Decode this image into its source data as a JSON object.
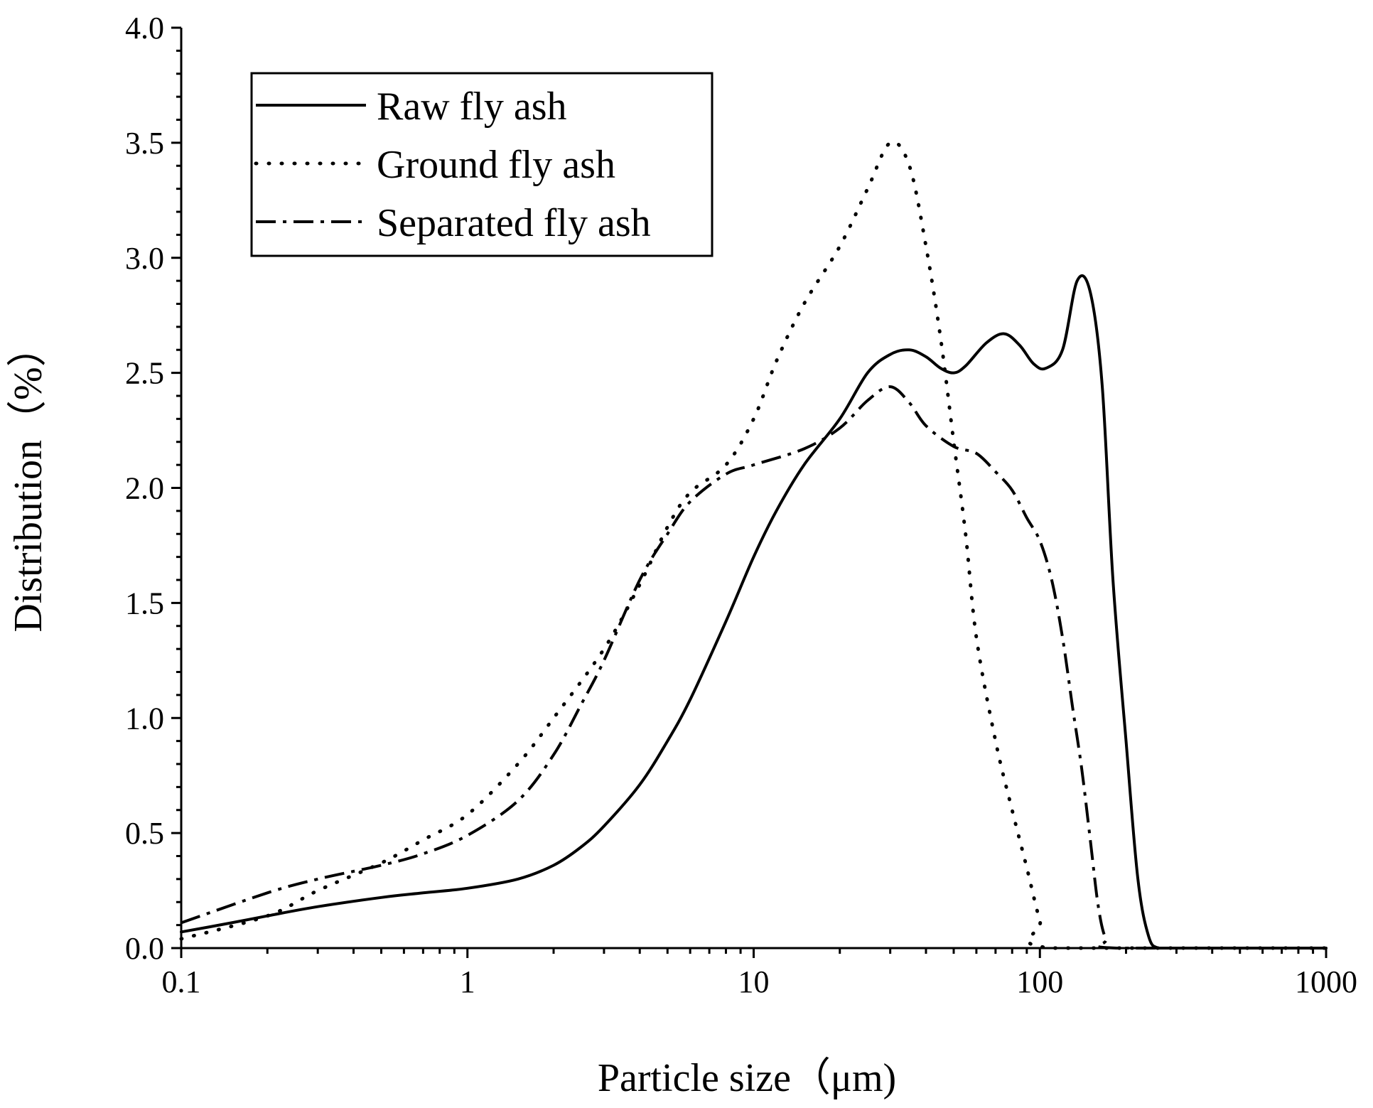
{
  "chart_data": {
    "type": "line",
    "title": "",
    "xlabel": "Particle size（μm)",
    "ylabel": "Distribution（%）",
    "xscale": "log",
    "xlim": [
      0.1,
      1000
    ],
    "ylim": [
      0.0,
      4.0
    ],
    "x_ticks": [
      "0.1",
      "1",
      "10",
      "100",
      "1000"
    ],
    "y_ticks": [
      "0.0",
      "0.5",
      "1.0",
      "1.5",
      "2.0",
      "2.5",
      "3.0",
      "3.5",
      "4.0"
    ],
    "legend_position": "top-left",
    "series": [
      {
        "name": "Raw fly ash",
        "style": "solid",
        "x": [
          0.1,
          0.15,
          0.2,
          0.3,
          0.5,
          0.7,
          1.0,
          1.5,
          2.0,
          2.5,
          3.0,
          4.0,
          5.0,
          6.0,
          8.0,
          10.0,
          12.0,
          15.0,
          20.0,
          25.0,
          30.0,
          35.0,
          40.0,
          45.0,
          50.0,
          55.0,
          65.0,
          75.0,
          85.0,
          95.0,
          105.0,
          120.0,
          135.0,
          150.0,
          165.0,
          180.0,
          200.0,
          220.0,
          240.0,
          260.0,
          300.0,
          1000.0
        ],
        "values": [
          0.07,
          0.11,
          0.14,
          0.18,
          0.22,
          0.24,
          0.26,
          0.3,
          0.36,
          0.44,
          0.53,
          0.71,
          0.9,
          1.08,
          1.42,
          1.7,
          1.9,
          2.1,
          2.3,
          2.5,
          2.58,
          2.6,
          2.57,
          2.52,
          2.5,
          2.53,
          2.63,
          2.67,
          2.62,
          2.54,
          2.52,
          2.6,
          2.9,
          2.85,
          2.45,
          1.6,
          0.9,
          0.3,
          0.05,
          0.0,
          0.0,
          0.0
        ]
      },
      {
        "name": "Ground fly ash",
        "style": "dotted",
        "x": [
          0.1,
          0.2,
          0.3,
          0.5,
          0.7,
          1.0,
          1.5,
          2.0,
          3.0,
          4.0,
          5.0,
          6.0,
          8.0,
          10.0,
          12.0,
          15.0,
          20.0,
          25.0,
          30.0,
          35.0,
          40.0,
          45.0,
          50.0,
          55.0,
          60.0,
          70.0,
          80.0,
          90.0,
          100.0,
          110.0,
          1000.0
        ],
        "values": [
          0.04,
          0.14,
          0.25,
          0.37,
          0.47,
          0.58,
          0.8,
          1.0,
          1.3,
          1.58,
          1.83,
          1.98,
          2.1,
          2.3,
          2.55,
          2.8,
          3.05,
          3.3,
          3.5,
          3.4,
          3.05,
          2.65,
          2.2,
          1.8,
          1.35,
          0.9,
          0.6,
          0.35,
          0.12,
          0.0,
          0.0
        ]
      },
      {
        "name": "Separated fly ash",
        "style": "dash-dot",
        "x": [
          0.1,
          0.2,
          0.3,
          0.5,
          0.7,
          1.0,
          1.5,
          2.0,
          2.5,
          3.0,
          4.0,
          5.0,
          6.0,
          8.0,
          10.0,
          15.0,
          20.0,
          25.0,
          30.0,
          35.0,
          40.0,
          50.0,
          60.0,
          70.0,
          80.0,
          90.0,
          100.0,
          110.0,
          120.0,
          130.0,
          140.0,
          150.0,
          160.0,
          170.0,
          185.0,
          1000.0
        ],
        "values": [
          0.11,
          0.24,
          0.3,
          0.36,
          0.41,
          0.49,
          0.64,
          0.84,
          1.06,
          1.25,
          1.6,
          1.8,
          1.94,
          2.06,
          2.1,
          2.17,
          2.26,
          2.38,
          2.44,
          2.37,
          2.27,
          2.18,
          2.15,
          2.07,
          1.99,
          1.87,
          1.77,
          1.6,
          1.35,
          1.05,
          0.78,
          0.47,
          0.18,
          0.04,
          0.0,
          0.0
        ]
      }
    ]
  }
}
